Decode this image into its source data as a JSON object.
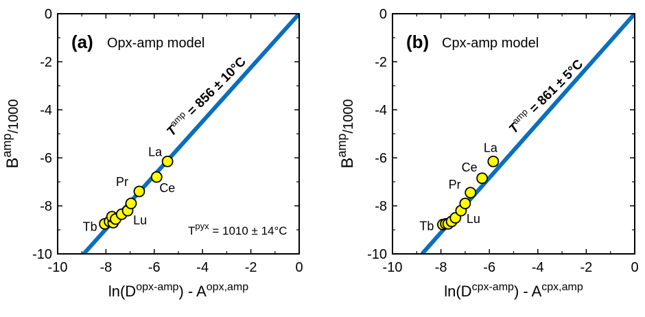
{
  "chart_data": [
    {
      "type": "scatter",
      "panel_label": "(a)",
      "title": "Opx-amp model",
      "xlabel": {
        "base": "ln(D",
        "sup1": "opx-amp",
        "mid": ") - A",
        "sup2": "opx,amp"
      },
      "ylabel": {
        "base": "B",
        "sup": "amp",
        "tail": "/1000"
      },
      "xlim": [
        -10,
        0
      ],
      "ylim": [
        -10,
        0
      ],
      "xticks": [
        "-10",
        "-8",
        "-6",
        "-4",
        "-2",
        "0"
      ],
      "yticks": [
        "0",
        "-2",
        "-4",
        "-6",
        "-8",
        "-10"
      ],
      "fit_line": {
        "x": [
          -8.92,
          0
        ],
        "y": [
          -10,
          0
        ],
        "color": "#0a6fbd"
      },
      "fit_label": {
        "T": "T",
        "sup": "amp",
        "text": " = 856 ± 10°C"
      },
      "note": {
        "T": "T",
        "sup": "pyx",
        "text": " = 1010 ± 14°C"
      },
      "point_color": "#ffff00",
      "points": [
        {
          "x": -5.45,
          "y": -6.15,
          "label": "La"
        },
        {
          "x": -5.9,
          "y": -6.8,
          "label": "Ce"
        },
        {
          "x": -6.62,
          "y": -7.4,
          "label": "Pr"
        },
        {
          "x": -6.96,
          "y": -7.9,
          "label": ""
        },
        {
          "x": -7.1,
          "y": -8.2,
          "label": "Lu"
        },
        {
          "x": -7.35,
          "y": -8.35,
          "label": ""
        },
        {
          "x": -7.6,
          "y": -8.55,
          "label": ""
        },
        {
          "x": -7.75,
          "y": -8.45,
          "label": ""
        },
        {
          "x": -7.7,
          "y": -8.7,
          "label": ""
        },
        {
          "x": -7.85,
          "y": -8.65,
          "label": ""
        },
        {
          "x": -8.05,
          "y": -8.75,
          "label": "Tb"
        }
      ]
    },
    {
      "type": "scatter",
      "panel_label": "(b)",
      "title": "Cpx-amp model",
      "xlabel": {
        "base": "ln(D",
        "sup1": "cpx-amp",
        "mid": ") - A",
        "sup2": "cpx,amp"
      },
      "ylabel": {
        "base": "B",
        "sup": "amp",
        "tail": "/1000"
      },
      "xlim": [
        -10,
        0
      ],
      "ylim": [
        -10,
        0
      ],
      "xticks": [
        "-10",
        "-8",
        "-6",
        "-4",
        "-2",
        "0"
      ],
      "yticks": [
        "0",
        "-2",
        "-4",
        "-6",
        "-8",
        "-10"
      ],
      "fit_line": {
        "x": [
          -8.78,
          0
        ],
        "y": [
          -10,
          0
        ],
        "color": "#0a6fbd"
      },
      "fit_label": {
        "T": "T",
        "sup": "amp",
        "text": " = 861 ± 5°C"
      },
      "point_color": "#ffff00",
      "points": [
        {
          "x": -5.84,
          "y": -6.15,
          "label": "La"
        },
        {
          "x": -6.3,
          "y": -6.85,
          "label": "Ce"
        },
        {
          "x": -6.78,
          "y": -7.45,
          "label": "Pr"
        },
        {
          "x": -7.0,
          "y": -7.9,
          "label": ""
        },
        {
          "x": -7.17,
          "y": -8.2,
          "label": "Lu"
        },
        {
          "x": -7.4,
          "y": -8.5,
          "label": ""
        },
        {
          "x": -7.56,
          "y": -8.65,
          "label": ""
        },
        {
          "x": -7.7,
          "y": -8.75,
          "label": ""
        },
        {
          "x": -7.8,
          "y": -8.75,
          "label": ""
        },
        {
          "x": -7.92,
          "y": -8.78,
          "label": "Tb"
        }
      ]
    }
  ]
}
